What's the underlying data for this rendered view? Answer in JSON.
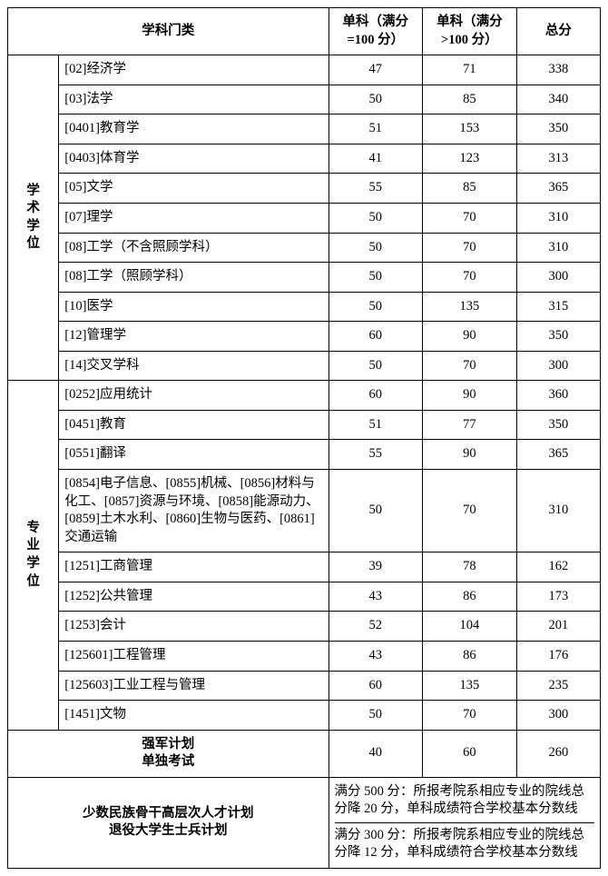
{
  "headers": {
    "category": "学科门类",
    "single100": "单科（满分=100 分）",
    "singleGt100": "单科（满分>100 分）",
    "total": "总分"
  },
  "groups": [
    {
      "label": "学术学位",
      "rows": [
        {
          "subject": "[02]经济学",
          "s100": "47",
          "sGt100": "71",
          "total": "338"
        },
        {
          "subject": "[03]法学",
          "s100": "50",
          "sGt100": "85",
          "total": "340"
        },
        {
          "subject": "[0401]教育学",
          "s100": "51",
          "sGt100": "153",
          "total": "350"
        },
        {
          "subject": "[0403]体育学",
          "s100": "41",
          "sGt100": "123",
          "total": "313"
        },
        {
          "subject": "[05]文学",
          "s100": "55",
          "sGt100": "85",
          "total": "365"
        },
        {
          "subject": "[07]理学",
          "s100": "50",
          "sGt100": "70",
          "total": "310"
        },
        {
          "subject": "[08]工学（不含照顾学科）",
          "s100": "50",
          "sGt100": "70",
          "total": "310"
        },
        {
          "subject": "[08]工学（照顾学科）",
          "s100": "50",
          "sGt100": "70",
          "total": "300"
        },
        {
          "subject": "[10]医学",
          "s100": "50",
          "sGt100": "135",
          "total": "315"
        },
        {
          "subject": "[12]管理学",
          "s100": "60",
          "sGt100": "90",
          "total": "350"
        },
        {
          "subject": "[14]交叉学科",
          "s100": "50",
          "sGt100": "70",
          "total": "300"
        }
      ]
    },
    {
      "label": "专业学位",
      "rows": [
        {
          "subject": "[0252]应用统计",
          "s100": "60",
          "sGt100": "90",
          "total": "360"
        },
        {
          "subject": "[0451]教育",
          "s100": "51",
          "sGt100": "77",
          "total": "350"
        },
        {
          "subject": "[0551]翻译",
          "s100": "55",
          "sGt100": "90",
          "total": "365"
        },
        {
          "subject": "[0854]电子信息、[0855]机械、[0856]材料与化工、[0857]资源与环境、[0858]能源动力、[0859]土木水利、[0860]生物与医药、[0861]交通运输",
          "s100": "50",
          "sGt100": "70",
          "total": "310"
        },
        {
          "subject": "[1251]工商管理",
          "s100": "39",
          "sGt100": "78",
          "total": "162"
        },
        {
          "subject": "[1252]公共管理",
          "s100": "43",
          "sGt100": "86",
          "total": "173"
        },
        {
          "subject": "[1253]会计",
          "s100": "52",
          "sGt100": "104",
          "total": "201"
        },
        {
          "subject": "[125601]工程管理",
          "s100": "43",
          "sGt100": "86",
          "total": "176"
        },
        {
          "subject": "[125603]工业工程与管理",
          "s100": "60",
          "sGt100": "135",
          "total": "235"
        },
        {
          "subject": "[1451]文物",
          "s100": "50",
          "sGt100": "70",
          "total": "300"
        }
      ]
    }
  ],
  "specialPlan1": {
    "label_line1": "强军计划",
    "label_line2": "单独考试",
    "s100": "40",
    "sGt100": "60",
    "total": "260"
  },
  "specialPlan2": {
    "label_line1": "少数民族骨干高层次人才计划",
    "label_line2": "退役大学生士兵计划",
    "note_line1": "满分 500 分：所报考院系相应专业的院线总分降 20 分，单科成绩符合学校基本分数线",
    "note_line2": "满分 300 分：所报考院系相应专业的院线总分降 12 分，单科成绩符合学校基本分数线"
  }
}
